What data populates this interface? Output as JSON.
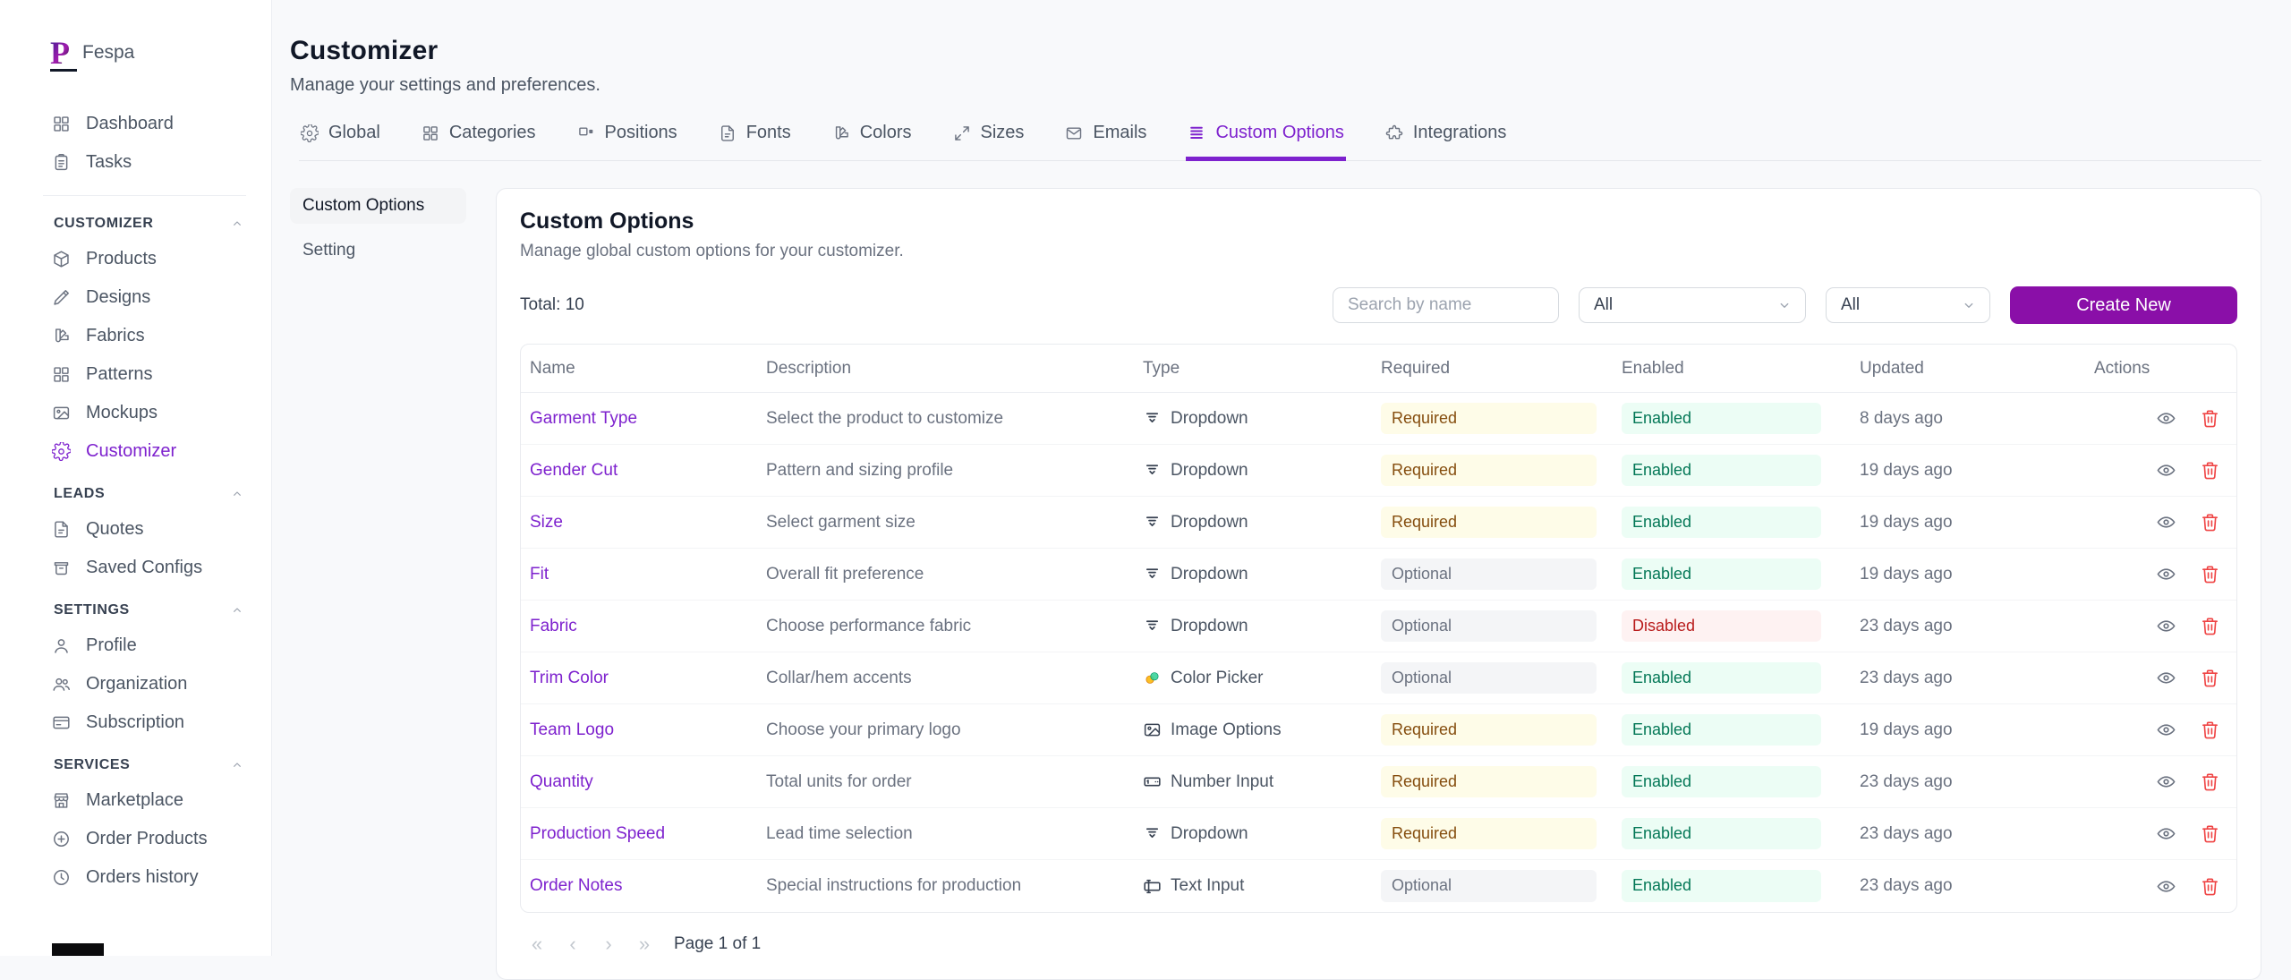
{
  "brand": {
    "name": "Fespa",
    "logo_letter": "P"
  },
  "sidebar": {
    "top_items": [
      {
        "label": "Dashboard",
        "icon": "grid-icon"
      },
      {
        "label": "Tasks",
        "icon": "clipboard-icon"
      }
    ],
    "sections": [
      {
        "title": "CUSTOMIZER",
        "items": [
          {
            "label": "Products",
            "icon": "box-icon"
          },
          {
            "label": "Designs",
            "icon": "pencil-icon"
          },
          {
            "label": "Fabrics",
            "icon": "swatch-icon"
          },
          {
            "label": "Patterns",
            "icon": "grid-icon"
          },
          {
            "label": "Mockups",
            "icon": "image-icon"
          },
          {
            "label": "Customizer",
            "icon": "gear-icon",
            "active": true
          }
        ]
      },
      {
        "title": "LEADS",
        "items": [
          {
            "label": "Quotes",
            "icon": "file-icon"
          },
          {
            "label": "Saved Configs",
            "icon": "archive-icon"
          }
        ]
      },
      {
        "title": "SETTINGS",
        "items": [
          {
            "label": "Profile",
            "icon": "user-icon"
          },
          {
            "label": "Organization",
            "icon": "users-icon"
          },
          {
            "label": "Subscription",
            "icon": "credit-card-icon"
          }
        ]
      },
      {
        "title": "SERVICES",
        "items": [
          {
            "label": "Marketplace",
            "icon": "store-icon"
          },
          {
            "label": "Order Products",
            "icon": "plus-circle-icon"
          },
          {
            "label": "Orders history",
            "icon": "clock-icon"
          }
        ]
      }
    ]
  },
  "page": {
    "title": "Customizer",
    "subtitle": "Manage your settings and preferences."
  },
  "tabs": [
    {
      "label": "Global",
      "icon": "gear-icon"
    },
    {
      "label": "Categories",
      "icon": "grid-icon"
    },
    {
      "label": "Positions",
      "icon": "layout-icon"
    },
    {
      "label": "Fonts",
      "icon": "file-icon"
    },
    {
      "label": "Colors",
      "icon": "swatch-icon"
    },
    {
      "label": "Sizes",
      "icon": "expand-icon"
    },
    {
      "label": "Emails",
      "icon": "mail-icon"
    },
    {
      "label": "Custom Options",
      "icon": "rows-icon",
      "active": true
    },
    {
      "label": "Integrations",
      "icon": "puzzle-icon"
    }
  ],
  "subnav": [
    {
      "label": "Custom Options",
      "active": true
    },
    {
      "label": "Setting"
    }
  ],
  "panel": {
    "title": "Custom Options",
    "subtitle": "Manage global custom options for your customizer.",
    "total_label": "Total: 10",
    "search_placeholder": "Search by name",
    "filters": [
      {
        "value": "All"
      },
      {
        "value": "All"
      }
    ],
    "create_button": "Create New"
  },
  "table": {
    "columns": [
      "Name",
      "Description",
      "Type",
      "Required",
      "Enabled",
      "Updated",
      "Actions"
    ],
    "rows": [
      {
        "name": "Garment Type",
        "description": "Select the product to customize",
        "type": "Dropdown",
        "type_icon": "dropdown-type-icon",
        "required": "Required",
        "enabled": "Enabled",
        "updated": "8 days ago"
      },
      {
        "name": "Gender Cut",
        "description": "Pattern and sizing profile",
        "type": "Dropdown",
        "type_icon": "dropdown-type-icon",
        "required": "Required",
        "enabled": "Enabled",
        "updated": "19 days ago"
      },
      {
        "name": "Size",
        "description": "Select garment size",
        "type": "Dropdown",
        "type_icon": "dropdown-type-icon",
        "required": "Required",
        "enabled": "Enabled",
        "updated": "19 days ago"
      },
      {
        "name": "Fit",
        "description": "Overall fit preference",
        "type": "Dropdown",
        "type_icon": "dropdown-type-icon",
        "required": "Optional",
        "enabled": "Enabled",
        "updated": "19 days ago"
      },
      {
        "name": "Fabric",
        "description": "Choose performance fabric",
        "type": "Dropdown",
        "type_icon": "dropdown-type-icon",
        "required": "Optional",
        "enabled": "Disabled",
        "updated": "23 days ago"
      },
      {
        "name": "Trim Color",
        "description": "Collar/hem accents",
        "type": "Color Picker",
        "type_icon": "color-picker-icon",
        "required": "Optional",
        "enabled": "Enabled",
        "updated": "23 days ago"
      },
      {
        "name": "Team Logo",
        "description": "Choose your primary logo",
        "type": "Image Options",
        "type_icon": "image-options-icon",
        "required": "Required",
        "enabled": "Enabled",
        "updated": "19 days ago"
      },
      {
        "name": "Quantity",
        "description": "Total units for order",
        "type": "Number Input",
        "type_icon": "number-input-icon",
        "required": "Required",
        "enabled": "Enabled",
        "updated": "23 days ago"
      },
      {
        "name": "Production Speed",
        "description": "Lead time selection",
        "type": "Dropdown",
        "type_icon": "dropdown-type-icon",
        "required": "Required",
        "enabled": "Enabled",
        "updated": "23 days ago"
      },
      {
        "name": "Order Notes",
        "description": "Special instructions for production",
        "type": "Text Input",
        "type_icon": "text-input-icon",
        "required": "Optional",
        "enabled": "Enabled",
        "updated": "23 days ago"
      }
    ]
  },
  "pagination": {
    "first": "«",
    "prev": "‹",
    "next": "›",
    "last": "»",
    "label": "Page 1 of 1"
  },
  "colors": {
    "accent_purple": "#8a0fa8",
    "link_purple": "#7e22ce",
    "required_bg": "#fefce8",
    "required_text": "#854d0e",
    "optional_bg": "#f4f5f7",
    "optional_text": "#6b7280",
    "enabled_bg": "#ecfdf5",
    "enabled_text": "#047857",
    "disabled_bg": "#fef2f2",
    "disabled_text": "#b91c1c"
  }
}
